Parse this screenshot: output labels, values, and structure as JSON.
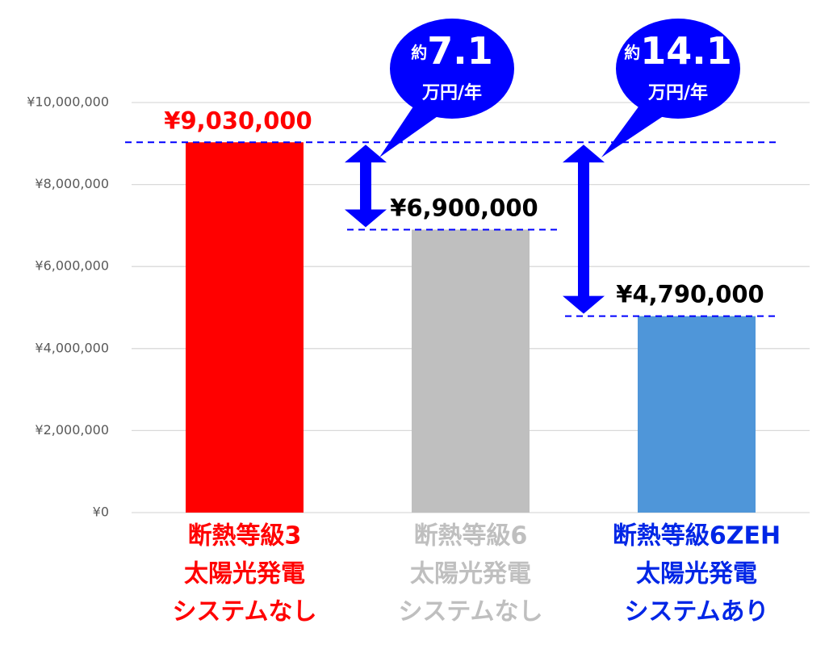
{
  "chart_data": {
    "type": "bar",
    "categories": [
      [
        "断熱等級3",
        "太陽光発電",
        "システムなし"
      ],
      [
        "断熱等級6",
        "太陽光発電",
        "システムなし"
      ],
      [
        "断熱等級6ZEH",
        "太陽光発電",
        "システムあり"
      ]
    ],
    "category_colors": [
      "#ff0000",
      "#bfbfbf",
      "#0026e6"
    ],
    "values": [
      9030000,
      6900000,
      4790000
    ],
    "value_labels": [
      "¥9,030,000",
      "¥6,900,000",
      "¥4,790,000"
    ],
    "value_label_colors": [
      "#ff0000",
      "#000000",
      "#000000"
    ],
    "colors": [
      "#ff0000",
      "#bfbfbf",
      "#4f96d9"
    ],
    "ylim": [
      0,
      10000000
    ],
    "yticks": [
      {
        "value": 0,
        "label": "¥0"
      },
      {
        "value": 2000000,
        "label": "¥2,000,000"
      },
      {
        "value": 4000000,
        "label": "¥4,000,000"
      },
      {
        "value": 6000000,
        "label": "¥6,000,000"
      },
      {
        "value": 8000000,
        "label": "¥8,000,000"
      },
      {
        "value": 10000000,
        "label": "¥10,000,000"
      }
    ],
    "grid": true,
    "annotations": [
      {
        "prefix": "約",
        "value": "7.1",
        "unit": "万円/年"
      },
      {
        "prefix": "約",
        "value": "14.1",
        "unit": "万円/年"
      }
    ]
  }
}
